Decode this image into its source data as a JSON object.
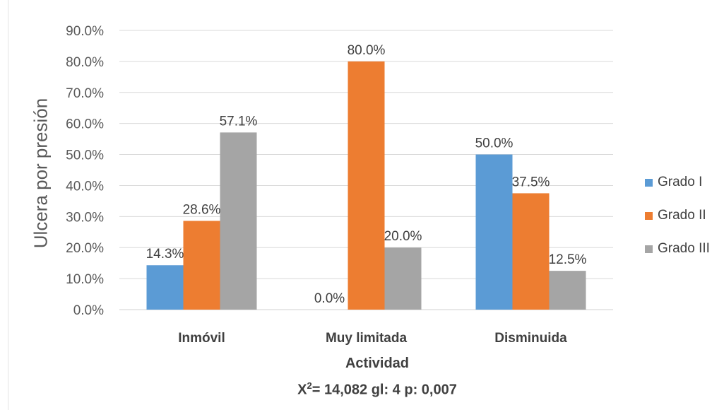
{
  "chart_data": {
    "type": "bar",
    "categories": [
      "Inmóvil",
      "Muy limitada",
      "Disminuida"
    ],
    "series": [
      {
        "name": "Grado I",
        "color": "#5B9BD5",
        "values": [
          14.3,
          0.0,
          50.0
        ],
        "labels": [
          "14.3%",
          "0.0%",
          "50.0%"
        ]
      },
      {
        "name": "Grado II",
        "color": "#ED7D31",
        "values": [
          28.6,
          80.0,
          37.5
        ],
        "labels": [
          "28.6%",
          "80.0%",
          "37.5%"
        ]
      },
      {
        "name": "Grado III",
        "color": "#A5A5A5",
        "values": [
          57.1,
          20.0,
          12.5
        ],
        "labels": [
          "57.1%",
          "20.0%",
          "12.5%"
        ]
      }
    ],
    "ylim": [
      0,
      90
    ],
    "yticks": [
      {
        "value": 0,
        "label": "0.0%"
      },
      {
        "value": 10,
        "label": "10.0%"
      },
      {
        "value": 20,
        "label": "20.0%"
      },
      {
        "value": 30,
        "label": "30.0%"
      },
      {
        "value": 40,
        "label": "40.0%"
      },
      {
        "value": 50,
        "label": "50.0%"
      },
      {
        "value": 60,
        "label": "60.0%"
      },
      {
        "value": 70,
        "label": "70.0%"
      },
      {
        "value": 80,
        "label": "80.0%"
      },
      {
        "value": 90,
        "label": "90.0%"
      }
    ],
    "ylabel": "Ulcera por presión",
    "xlabel": "Actividad",
    "annotation": {
      "prefix": "X",
      "superscript": "2",
      "text": "= 14,082 gl: 4 p: 0,007"
    },
    "grid": true,
    "legend_position": "right"
  }
}
